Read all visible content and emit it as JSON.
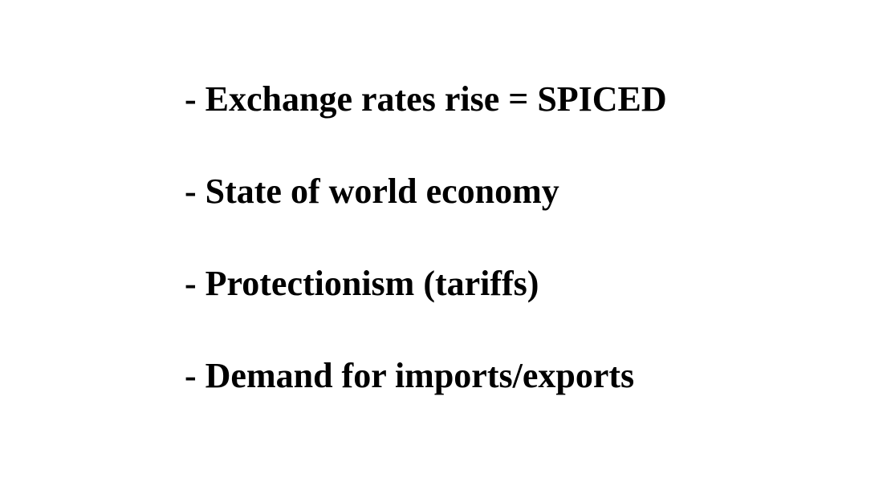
{
  "slide": {
    "bullets": [
      "- Exchange rates rise = SPICED",
      "- State of world economy",
      "- Protectionism (tariffs)",
      "- Demand for imports/exports"
    ]
  },
  "colors": {
    "background": "#ffffff",
    "text": "#000000"
  }
}
